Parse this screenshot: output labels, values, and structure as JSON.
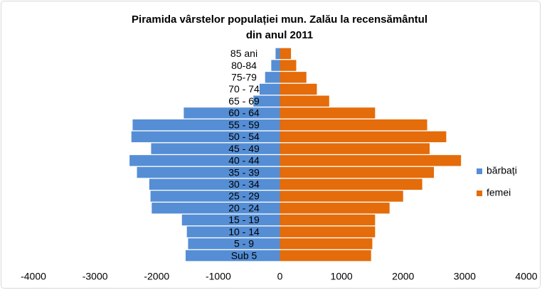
{
  "chart_data": {
    "type": "bar",
    "orientation": "horizontal",
    "stacked": true,
    "title": [
      "Piramida vârstelor populației mun. Zalău la recensământul",
      "din anul 2011"
    ],
    "categories": [
      "Sub 5",
      "5 - 9",
      "10 - 14",
      "15 - 19",
      "20 - 24",
      "25 - 29",
      "30 - 34",
      "35 - 39",
      "40 - 44",
      "45 - 49",
      "50 - 54",
      "55 - 59",
      "60 - 64",
      "65 - 69",
      "70 - 74",
      "75-79",
      "80-84",
      "85 ani"
    ],
    "series": [
      {
        "name": "bărbați",
        "color": "#558ed5",
        "values": [
          -1530,
          -1490,
          -1510,
          -1590,
          -2080,
          -2100,
          -2120,
          -2320,
          -2440,
          -2090,
          -2410,
          -2390,
          -1560,
          -430,
          -330,
          -240,
          -140,
          -70
        ]
      },
      {
        "name": "femei",
        "color": "#e46c0a",
        "values": [
          1480,
          1500,
          1545,
          1545,
          1780,
          2000,
          2310,
          2500,
          2940,
          2430,
          2700,
          2390,
          1545,
          800,
          600,
          430,
          265,
          180
        ]
      }
    ],
    "xlim": [
      -4000,
      4000
    ],
    "xticks": [
      -4000,
      -3000,
      -2000,
      -1000,
      0,
      1000,
      2000,
      3000,
      4000
    ],
    "grid": false,
    "legend": "right"
  }
}
